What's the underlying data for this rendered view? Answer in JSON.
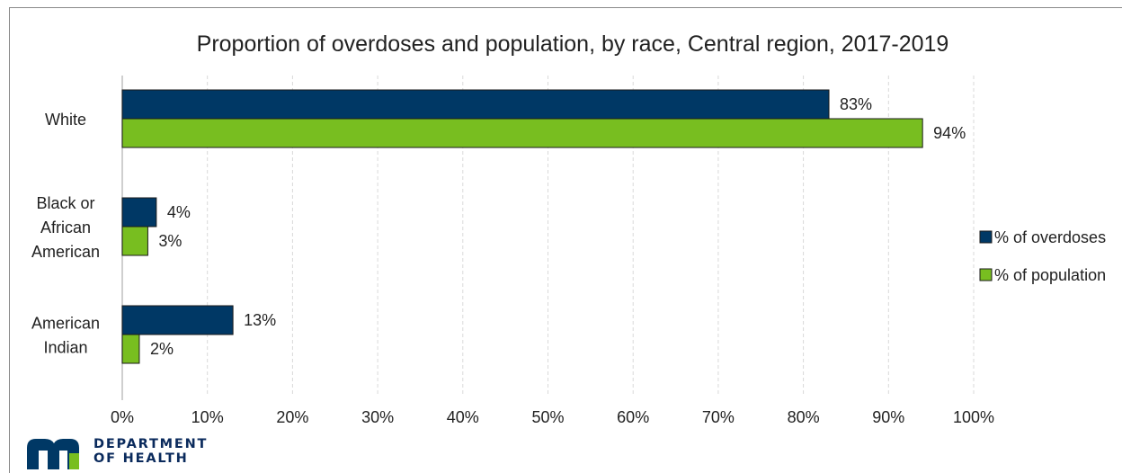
{
  "chart_data": {
    "type": "bar",
    "orientation": "horizontal",
    "title": "Proportion of overdoses and population, by race, Central region, 2017-2019",
    "categories": [
      "White",
      "Black or African American",
      "American Indian"
    ],
    "category_lines": [
      [
        "White"
      ],
      [
        "Black or",
        "African",
        "American"
      ],
      [
        "American",
        "Indian"
      ]
    ],
    "series": [
      {
        "name": "% of overdoses",
        "values": [
          83,
          4,
          13
        ],
        "labels": [
          "83%",
          "4%",
          "13%"
        ],
        "color": "#003865"
      },
      {
        "name": "% of population",
        "values": [
          94,
          3,
          2
        ],
        "labels": [
          "94%",
          "3%",
          "2%"
        ],
        "color": "#78be20"
      }
    ],
    "x_ticks": [
      "0%",
      "10%",
      "20%",
      "30%",
      "40%",
      "50%",
      "60%",
      "70%",
      "80%",
      "90%",
      "100%"
    ],
    "xlim": [
      0,
      100
    ],
    "grid": true,
    "legend_position": "right"
  },
  "branding": {
    "line1": "DEPARTMENT",
    "line2": "OF HEALTH",
    "logo_mark": "mn-logo-icon",
    "color": "#003865"
  }
}
